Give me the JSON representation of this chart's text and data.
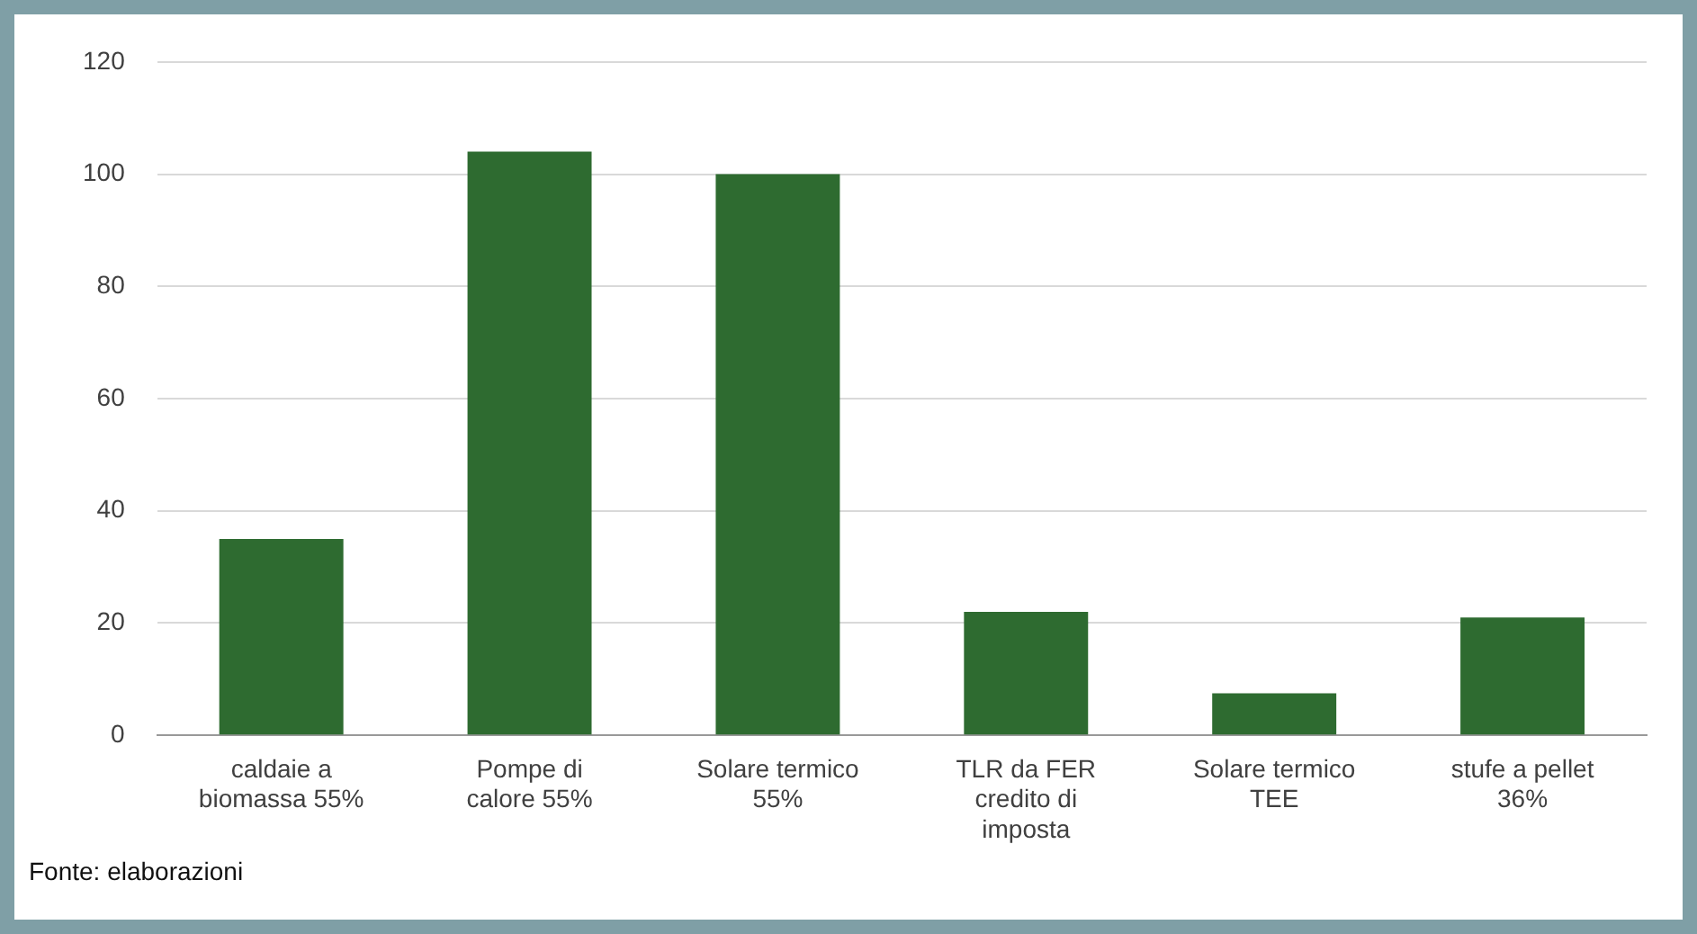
{
  "chart_data": {
    "type": "bar",
    "categories": [
      "caldaie a\nbiomassa 55%",
      "Pompe di\ncalore 55%",
      "Solare termico\n55%",
      "TLR da FER\ncredito di\nimposta",
      "Solare termico\nTEE",
      "stufe a pellet\n36%"
    ],
    "values": [
      35,
      104,
      100,
      22,
      7.5,
      21
    ],
    "color": "#2e6b30",
    "ylim": [
      0,
      120
    ],
    "yticks": [
      0,
      20,
      40,
      60,
      80,
      100,
      120
    ],
    "grid": "y",
    "legend": false,
    "annotations": [
      "Fonte: elaborazioni"
    ]
  }
}
